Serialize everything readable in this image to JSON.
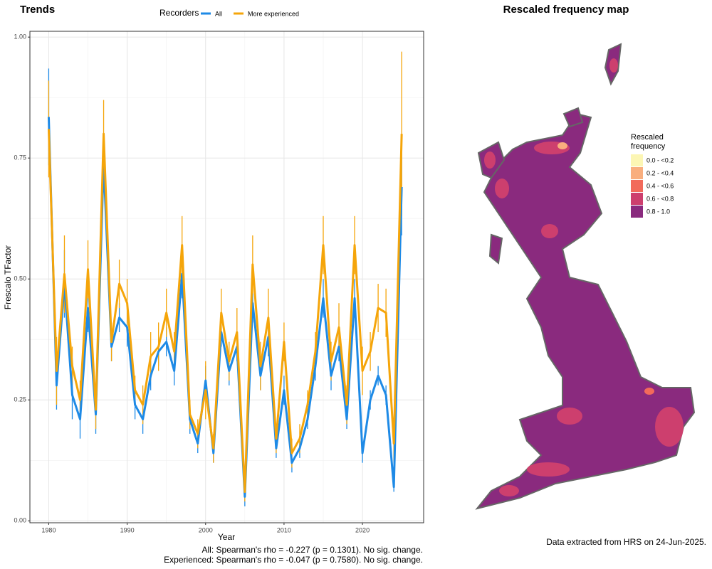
{
  "chart_data": {
    "type": "line",
    "title": "Trends",
    "xlabel": "Year",
    "ylabel": "Frescalo TFactor",
    "legend_title": "Recorders",
    "legend_position": "top",
    "x": [
      1980,
      1981,
      1982,
      1983,
      1984,
      1985,
      1986,
      1987,
      1988,
      1989,
      1990,
      1991,
      1992,
      1993,
      1994,
      1995,
      1996,
      1997,
      1998,
      1999,
      2000,
      2001,
      2002,
      2003,
      2004,
      2005,
      2006,
      2007,
      2008,
      2009,
      2010,
      2011,
      2012,
      2013,
      2014,
      2015,
      2016,
      2017,
      2018,
      2019,
      2020,
      2021,
      2022,
      2023,
      2024,
      2025
    ],
    "series": [
      {
        "name": "All",
        "color": "#1e8ae6",
        "values": [
          0.835,
          0.28,
          0.49,
          0.26,
          0.21,
          0.44,
          0.22,
          0.74,
          0.36,
          0.42,
          0.4,
          0.24,
          0.21,
          0.3,
          0.35,
          0.37,
          0.31,
          0.51,
          0.21,
          0.16,
          0.29,
          0.14,
          0.39,
          0.31,
          0.36,
          0.05,
          0.45,
          0.3,
          0.38,
          0.15,
          0.27,
          0.12,
          0.15,
          0.21,
          0.32,
          0.46,
          0.3,
          0.36,
          0.21,
          0.46,
          0.14,
          0.25,
          0.3,
          0.26,
          0.07,
          0.69
        ],
        "errors": [
          0.1,
          0.05,
          0.07,
          0.05,
          0.04,
          0.05,
          0.04,
          0.06,
          0.03,
          0.03,
          0.04,
          0.03,
          0.03,
          0.03,
          0.03,
          0.03,
          0.03,
          0.05,
          0.03,
          0.02,
          0.03,
          0.02,
          0.03,
          0.03,
          0.03,
          0.02,
          0.04,
          0.03,
          0.04,
          0.02,
          0.03,
          0.02,
          0.02,
          0.02,
          0.03,
          0.04,
          0.03,
          0.03,
          0.02,
          0.04,
          0.02,
          0.02,
          0.02,
          0.02,
          0.01,
          0.1
        ]
      },
      {
        "name": "More experienced",
        "color": "#f5a50a",
        "values": [
          0.81,
          0.31,
          0.51,
          0.32,
          0.25,
          0.52,
          0.23,
          0.8,
          0.37,
          0.49,
          0.45,
          0.27,
          0.24,
          0.34,
          0.36,
          0.43,
          0.35,
          0.57,
          0.22,
          0.18,
          0.27,
          0.15,
          0.43,
          0.33,
          0.39,
          0.06,
          0.53,
          0.32,
          0.42,
          0.17,
          0.37,
          0.14,
          0.17,
          0.24,
          0.35,
          0.57,
          0.33,
          0.4,
          0.24,
          0.57,
          0.31,
          0.35,
          0.44,
          0.43,
          0.16,
          0.8
        ],
        "errors": [
          0.1,
          0.07,
          0.08,
          0.04,
          0.04,
          0.06,
          0.04,
          0.07,
          0.04,
          0.05,
          0.05,
          0.03,
          0.04,
          0.05,
          0.05,
          0.05,
          0.04,
          0.06,
          0.03,
          0.03,
          0.06,
          0.03,
          0.05,
          0.04,
          0.05,
          0.02,
          0.06,
          0.05,
          0.06,
          0.03,
          0.04,
          0.03,
          0.03,
          0.03,
          0.04,
          0.06,
          0.04,
          0.05,
          0.04,
          0.06,
          0.05,
          0.04,
          0.05,
          0.05,
          0.04,
          0.17
        ]
      }
    ],
    "xlim": [
      1977.6,
      2027.8
    ],
    "xticks": [
      1980,
      1990,
      2000,
      2010,
      2020
    ],
    "ylim": [
      -0.004,
      1.012
    ],
    "yticks": [
      {
        "value": 0,
        "label": "0.00"
      },
      {
        "value": 0.25,
        "label": "0.25"
      },
      {
        "value": 0.5,
        "label": "0.50"
      },
      {
        "value": 0.75,
        "label": "0.75"
      },
      {
        "value": 1,
        "label": "1.00"
      }
    ],
    "grid": true,
    "minor_grid": true,
    "footnotes": [
      "All: Spearman's rho = -0.227 (p = 0.1301). No sig. change.",
      "Experienced: Spearman's rho = -0.047 (p = 0.7580). No sig. change."
    ]
  },
  "map": {
    "title": "Rescaled frequency map",
    "legend_title": [
      "Rescaled",
      "frequency"
    ],
    "legend": [
      {
        "label": "0.0 - <0.2",
        "color": "#fcf6b4"
      },
      {
        "label": "0.2 - <0.4",
        "color": "#f9ae7e"
      },
      {
        "label": "0.4 - <0.6",
        "color": "#f26a5b"
      },
      {
        "label": "0.6 - <0.8",
        "color": "#cd3f6e"
      },
      {
        "label": "0.8 - 1.0",
        "color": "#8a2a7e"
      }
    ],
    "caption": "Data extracted from HRS on 24-Jun-2025."
  }
}
